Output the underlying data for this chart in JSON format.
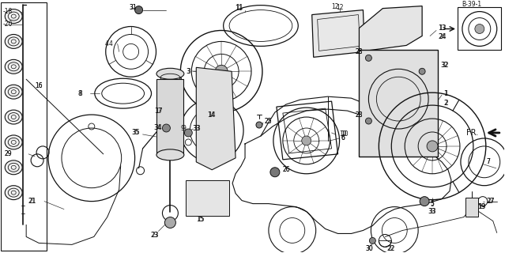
{
  "bg": "#ffffff",
  "fw": 6.39,
  "fh": 3.2,
  "dpi": 100
}
